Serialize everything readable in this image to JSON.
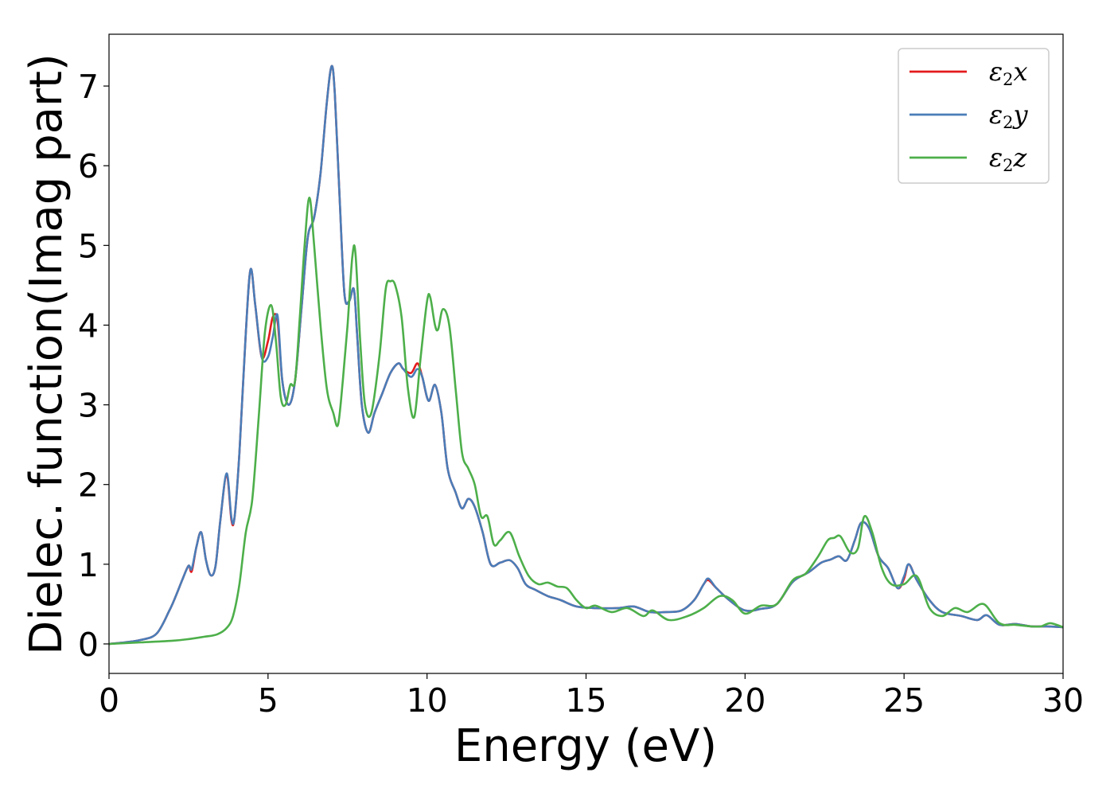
{
  "chart_data": {
    "type": "line",
    "title": "",
    "xlabel": "Energy (eV)",
    "ylabel": "Dielec. function(Imag part)",
    "xlim": [
      0,
      30
    ],
    "ylim": [
      -0.37,
      7.65
    ],
    "xticks": [
      0,
      5,
      10,
      15,
      20,
      25,
      30
    ],
    "xtick_labels": [
      "0",
      "5",
      "10",
      "15",
      "20",
      "25",
      "30"
    ],
    "yticks": [
      0,
      1,
      2,
      3,
      4,
      5,
      6,
      7
    ],
    "ytick_labels": [
      "0",
      "1",
      "2",
      "3",
      "4",
      "5",
      "6",
      "7"
    ],
    "grid": false,
    "legend_position": "top-right",
    "series": [
      {
        "name": "ε2x",
        "legend_base": "ε",
        "legend_sub": "2",
        "legend_tail": "x",
        "color": "#e41a1c",
        "x": [
          0,
          0.5,
          1.0,
          1.5,
          1.9,
          2.1,
          2.3,
          2.5,
          2.6,
          2.75,
          2.9,
          3.05,
          3.2,
          3.35,
          3.5,
          3.7,
          3.85,
          3.95,
          4.1,
          4.3,
          4.45,
          4.6,
          4.8,
          5.0,
          5.15,
          5.3,
          5.45,
          5.65,
          5.85,
          6.05,
          6.25,
          6.45,
          6.65,
          6.85,
          7.0,
          7.1,
          7.25,
          7.4,
          7.55,
          7.7,
          7.8,
          7.95,
          8.15,
          8.35,
          8.6,
          8.85,
          9.1,
          9.25,
          9.5,
          9.7,
          9.85,
          10.05,
          10.25,
          10.45,
          10.65,
          10.9,
          11.1,
          11.3,
          11.5,
          11.75,
          12.0,
          12.3,
          12.6,
          12.85,
          13.1,
          13.4,
          13.8,
          14.2,
          14.7,
          15.3,
          16.0,
          16.5,
          17.0,
          17.5,
          18.0,
          18.4,
          18.7,
          18.85,
          19.1,
          19.5,
          20.0,
          20.5,
          21.0,
          21.5,
          22.0,
          22.4,
          22.7,
          22.95,
          23.2,
          23.45,
          23.65,
          23.9,
          24.2,
          24.5,
          24.8,
          25.0,
          25.15,
          25.4,
          25.8,
          26.2,
          26.8,
          27.3,
          27.6,
          28.0,
          28.5,
          29.0,
          29.5,
          30.0
        ],
        "y": [
          0.0,
          0.02,
          0.05,
          0.13,
          0.42,
          0.6,
          0.8,
          0.98,
          0.91,
          1.22,
          1.4,
          1.05,
          0.86,
          0.98,
          1.55,
          2.12,
          1.55,
          1.6,
          2.4,
          3.9,
          4.7,
          4.25,
          3.6,
          3.8,
          4.1,
          4.05,
          3.3,
          3.0,
          3.3,
          4.2,
          5.1,
          5.35,
          5.9,
          6.8,
          7.25,
          6.9,
          5.6,
          4.4,
          4.3,
          4.45,
          3.9,
          3.0,
          2.65,
          2.9,
          3.15,
          3.4,
          3.52,
          3.45,
          3.4,
          3.52,
          3.35,
          3.05,
          3.25,
          2.9,
          2.2,
          1.9,
          1.7,
          1.82,
          1.72,
          1.4,
          1.0,
          1.02,
          1.05,
          0.95,
          0.75,
          0.68,
          0.6,
          0.55,
          0.47,
          0.45,
          0.45,
          0.47,
          0.4,
          0.4,
          0.42,
          0.55,
          0.75,
          0.8,
          0.7,
          0.55,
          0.42,
          0.44,
          0.5,
          0.78,
          0.9,
          1.02,
          1.06,
          1.1,
          1.05,
          1.3,
          1.52,
          1.45,
          1.1,
          0.95,
          0.7,
          0.82,
          1.0,
          0.8,
          0.55,
          0.4,
          0.35,
          0.3,
          0.36,
          0.24,
          0.25,
          0.22,
          0.22,
          0.21
        ]
      },
      {
        "name": "ε2y",
        "legend_base": "ε",
        "legend_sub": "2",
        "legend_tail": "y",
        "color": "#4a7db8",
        "x": [
          0,
          0.5,
          1.0,
          1.5,
          1.9,
          2.1,
          2.3,
          2.5,
          2.6,
          2.75,
          2.9,
          3.05,
          3.2,
          3.35,
          3.5,
          3.7,
          3.85,
          3.95,
          4.1,
          4.3,
          4.45,
          4.6,
          4.8,
          5.0,
          5.15,
          5.3,
          5.45,
          5.65,
          5.85,
          6.05,
          6.25,
          6.45,
          6.65,
          6.85,
          7.0,
          7.1,
          7.25,
          7.4,
          7.55,
          7.7,
          7.8,
          7.95,
          8.15,
          8.35,
          8.6,
          8.85,
          9.1,
          9.25,
          9.5,
          9.7,
          9.85,
          10.05,
          10.25,
          10.45,
          10.65,
          10.9,
          11.1,
          11.3,
          11.5,
          11.75,
          12.0,
          12.3,
          12.6,
          12.85,
          13.1,
          13.4,
          13.8,
          14.2,
          14.7,
          15.3,
          16.0,
          16.5,
          17.0,
          17.5,
          18.0,
          18.4,
          18.7,
          18.85,
          19.1,
          19.5,
          20.0,
          20.5,
          21.0,
          21.5,
          22.0,
          22.4,
          22.7,
          22.95,
          23.2,
          23.45,
          23.65,
          23.9,
          24.2,
          24.5,
          24.8,
          25.0,
          25.15,
          25.4,
          25.8,
          26.2,
          26.8,
          27.3,
          27.6,
          28.0,
          28.5,
          29.0,
          29.5,
          30.0
        ],
        "y": [
          0.0,
          0.02,
          0.05,
          0.13,
          0.42,
          0.6,
          0.8,
          0.98,
          0.94,
          1.22,
          1.4,
          1.05,
          0.86,
          0.98,
          1.55,
          2.14,
          1.58,
          1.6,
          2.4,
          3.9,
          4.7,
          4.25,
          3.6,
          3.6,
          3.85,
          4.12,
          3.3,
          3.0,
          3.3,
          4.2,
          5.1,
          5.35,
          5.9,
          6.8,
          7.25,
          6.9,
          5.6,
          4.4,
          4.3,
          4.45,
          3.9,
          3.0,
          2.65,
          2.9,
          3.15,
          3.4,
          3.52,
          3.45,
          3.35,
          3.45,
          3.35,
          3.05,
          3.25,
          2.9,
          2.2,
          1.9,
          1.7,
          1.82,
          1.72,
          1.4,
          1.0,
          1.02,
          1.05,
          0.95,
          0.75,
          0.68,
          0.6,
          0.55,
          0.47,
          0.45,
          0.45,
          0.47,
          0.4,
          0.4,
          0.42,
          0.55,
          0.75,
          0.82,
          0.7,
          0.55,
          0.42,
          0.44,
          0.5,
          0.78,
          0.9,
          1.02,
          1.06,
          1.1,
          1.05,
          1.3,
          1.52,
          1.45,
          1.1,
          0.95,
          0.7,
          0.85,
          1.0,
          0.8,
          0.55,
          0.4,
          0.35,
          0.3,
          0.36,
          0.24,
          0.25,
          0.22,
          0.22,
          0.21
        ]
      },
      {
        "name": "ε2z",
        "legend_base": "ε",
        "legend_sub": "2",
        "legend_tail": "z",
        "color": "#4daf4a",
        "x": [
          0,
          1.0,
          2.0,
          2.5,
          3.0,
          3.4,
          3.7,
          3.9,
          4.1,
          4.3,
          4.5,
          4.7,
          4.9,
          5.1,
          5.25,
          5.4,
          5.55,
          5.7,
          5.85,
          6.0,
          6.15,
          6.3,
          6.45,
          6.65,
          6.85,
          7.05,
          7.2,
          7.35,
          7.5,
          7.65,
          7.75,
          7.9,
          8.05,
          8.25,
          8.5,
          8.7,
          8.85,
          9.0,
          9.2,
          9.4,
          9.6,
          9.8,
          10.0,
          10.1,
          10.25,
          10.35,
          10.5,
          10.7,
          10.9,
          11.1,
          11.3,
          11.5,
          11.7,
          11.9,
          12.1,
          12.3,
          12.6,
          12.9,
          13.2,
          13.5,
          13.8,
          14.1,
          14.4,
          14.7,
          15.0,
          15.3,
          15.8,
          16.3,
          16.8,
          17.1,
          17.6,
          18.2,
          18.7,
          19.2,
          19.6,
          20.0,
          20.5,
          21.0,
          21.5,
          21.9,
          22.3,
          22.6,
          22.8,
          23.0,
          23.3,
          23.55,
          23.75,
          24.0,
          24.3,
          24.6,
          25.0,
          25.4,
          25.8,
          26.2,
          26.6,
          27.0,
          27.5,
          28.0,
          28.5,
          29.0,
          29.3,
          29.6,
          30.0
        ],
        "y": [
          0.0,
          0.02,
          0.04,
          0.06,
          0.09,
          0.12,
          0.2,
          0.35,
          0.75,
          1.4,
          1.8,
          2.8,
          3.9,
          4.25,
          3.8,
          3.1,
          3.0,
          3.25,
          3.3,
          4.1,
          5.0,
          5.6,
          5.0,
          4.0,
          3.2,
          2.9,
          2.75,
          3.3,
          4.0,
          4.85,
          4.9,
          3.8,
          3.0,
          2.9,
          3.6,
          4.45,
          4.55,
          4.5,
          4.1,
          3.2,
          2.85,
          3.6,
          4.3,
          4.35,
          4.0,
          3.95,
          4.2,
          4.0,
          3.2,
          2.4,
          2.2,
          2.0,
          1.6,
          1.6,
          1.25,
          1.3,
          1.4,
          1.1,
          0.85,
          0.75,
          0.77,
          0.72,
          0.7,
          0.55,
          0.45,
          0.48,
          0.4,
          0.45,
          0.35,
          0.42,
          0.3,
          0.35,
          0.45,
          0.6,
          0.55,
          0.38,
          0.48,
          0.5,
          0.8,
          0.88,
          1.1,
          1.3,
          1.33,
          1.35,
          1.15,
          1.2,
          1.6,
          1.4,
          0.95,
          0.75,
          0.75,
          0.85,
          0.45,
          0.35,
          0.45,
          0.4,
          0.5,
          0.26,
          0.24,
          0.22,
          0.22,
          0.26,
          0.21
        ]
      }
    ]
  }
}
